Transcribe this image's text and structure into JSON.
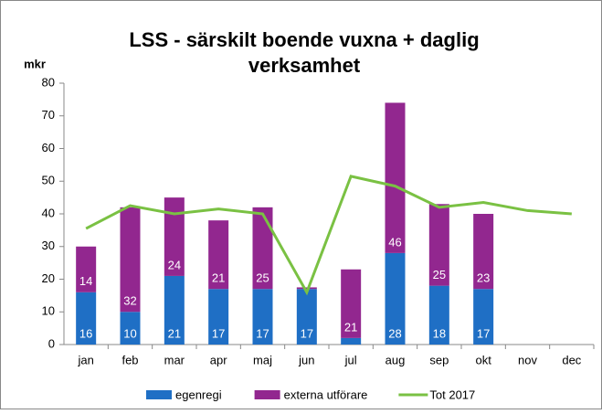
{
  "chart_data": {
    "type": "stacked-bar-line",
    "title": [
      "LSS - särskilt boende vuxna + daglig",
      "verksamhet"
    ],
    "y_label": "mkr",
    "categories": [
      "jan",
      "feb",
      "mar",
      "apr",
      "maj",
      "jun",
      "jul",
      "aug",
      "sep",
      "okt",
      "nov",
      "dec"
    ],
    "series": [
      {
        "name": "egenregi",
        "color": "#1f6fc5",
        "kind": "bar",
        "values": [
          16,
          10,
          21,
          17,
          17,
          17,
          2,
          28,
          18,
          17,
          null,
          null
        ]
      },
      {
        "name": "externa utförare",
        "color": "#92278f",
        "kind": "bar",
        "values": [
          14,
          32,
          24,
          21,
          25,
          0.5,
          21,
          46,
          25,
          23,
          null,
          null
        ]
      },
      {
        "name": "Tot 2017",
        "color": "#7ac143",
        "kind": "line",
        "values": [
          35.5,
          42.5,
          40,
          41.5,
          40,
          16,
          51.5,
          48.5,
          42,
          43.5,
          41,
          40
        ]
      }
    ],
    "ylim": [
      0,
      80
    ],
    "yticks": [
      0,
      10,
      20,
      30,
      40,
      50,
      60,
      70,
      80
    ],
    "grid": false,
    "legend": "bottom"
  }
}
